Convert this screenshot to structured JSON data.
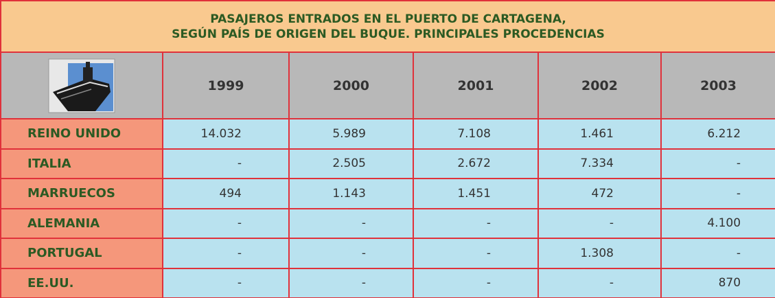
{
  "table": {
    "title": [
      "PASAJEROS ENTRADOS EN EL PUERTO DE CARTAGENA,",
      "SEGÚN PAÍS DE ORIGEN DEL BUQUE. PRINCIPALES PROCEDENCIAS"
    ],
    "columns": [
      "1999",
      "2000",
      "2001",
      "2002",
      "2003"
    ],
    "rows": [
      [
        "REINO UNIDO",
        "14.032",
        "5.989",
        "7.108",
        "1.461",
        "6.212"
      ],
      [
        "ITALIA",
        "-",
        "2.505",
        "2.672",
        "7.334",
        "-"
      ],
      [
        "MARRUECOS",
        "494",
        "1.143",
        "1.451",
        "472",
        "-"
      ],
      [
        "ALEMANIA",
        "-",
        "-",
        "-",
        "-",
        "4.100"
      ],
      [
        "PORTUGAL",
        "-",
        "-",
        "-",
        "1.308",
        "-"
      ],
      [
        "EE.UU.",
        "-",
        "-",
        "-",
        "-",
        "870"
      ]
    ]
  }
}
